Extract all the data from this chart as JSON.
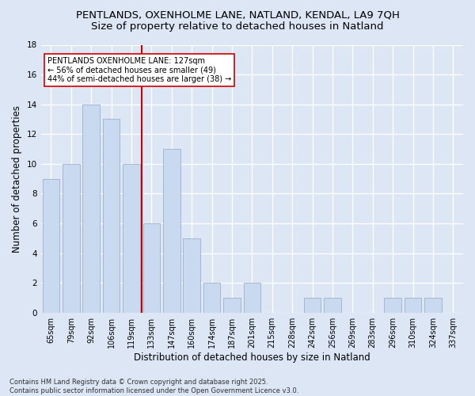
{
  "title1": "PENTLANDS, OXENHOLME LANE, NATLAND, KENDAL, LA9 7QH",
  "title2": "Size of property relative to detached houses in Natland",
  "xlabel": "Distribution of detached houses by size in Natland",
  "ylabel": "Number of detached properties",
  "categories": [
    "65sqm",
    "79sqm",
    "92sqm",
    "106sqm",
    "119sqm",
    "133sqm",
    "147sqm",
    "160sqm",
    "174sqm",
    "187sqm",
    "201sqm",
    "215sqm",
    "228sqm",
    "242sqm",
    "256sqm",
    "269sqm",
    "283sqm",
    "296sqm",
    "310sqm",
    "324sqm",
    "337sqm"
  ],
  "values": [
    9,
    10,
    14,
    13,
    10,
    6,
    11,
    5,
    2,
    1,
    2,
    0,
    0,
    1,
    1,
    0,
    0,
    1,
    1,
    1,
    0
  ],
  "bar_color": "#c9d9f0",
  "bar_edge_color": "#9fb0cc",
  "vline_color": "#cc0000",
  "annotation_text": "PENTLANDS OXENHOLME LANE: 127sqm\n← 56% of detached houses are smaller (49)\n44% of semi-detached houses are larger (38) →",
  "annotation_box_color": "#ffffff",
  "annotation_box_edge": "#cc0000",
  "ylim": [
    0,
    18
  ],
  "yticks": [
    0,
    2,
    4,
    6,
    8,
    10,
    12,
    14,
    16,
    18
  ],
  "footer": "Contains HM Land Registry data © Crown copyright and database right 2025.\nContains public sector information licensed under the Open Government Licence v3.0.",
  "background_color": "#dce6f5",
  "plot_bg_color": "#dce6f5",
  "grid_color": "#ffffff",
  "title_fontsize": 9.5,
  "subtitle_fontsize": 9.5,
  "tick_fontsize": 7,
  "ylabel_fontsize": 8.5,
  "xlabel_fontsize": 8.5,
  "footer_fontsize": 6,
  "annot_fontsize": 7
}
